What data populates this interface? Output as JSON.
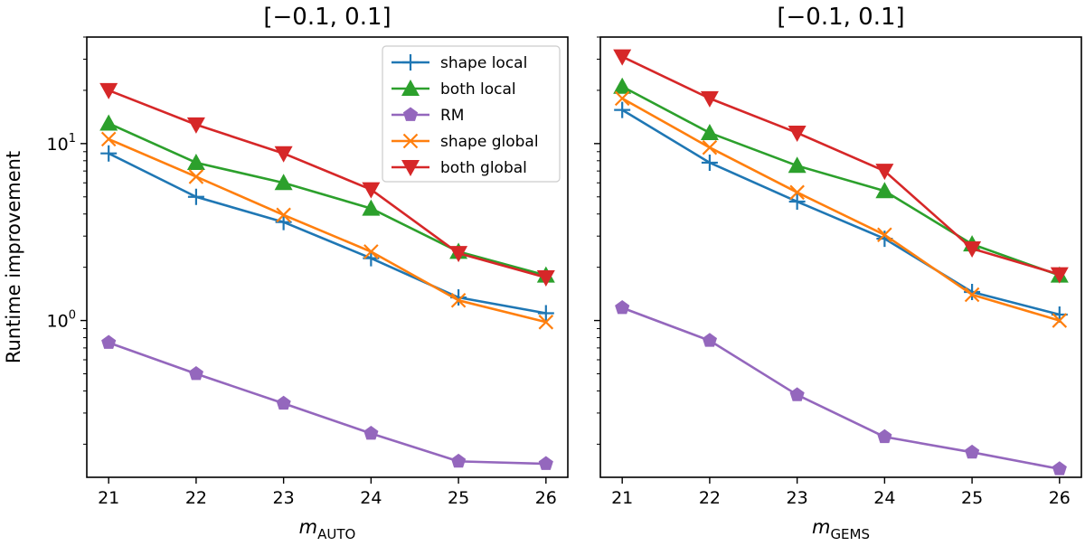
{
  "chart_data": [
    {
      "type": "line",
      "title": "[−0.1, 0.1]",
      "xlabel": "m",
      "xlabel_sub": "AUTO",
      "ylabel": "Runtime improvement",
      "yscale": "log",
      "ylim": [
        0.13,
        40
      ],
      "xlim": [
        20.75,
        26.25
      ],
      "x": [
        21,
        22,
        23,
        24,
        25,
        26
      ],
      "x_tick_labels": [
        "21",
        "22",
        "23",
        "24",
        "25",
        "26"
      ],
      "y_tick_labels": [
        {
          "base": "10",
          "exp": "0",
          "value": 1
        },
        {
          "base": "10",
          "exp": "1",
          "value": 10
        }
      ],
      "grid": false,
      "legend_position": "upper-right",
      "series": [
        {
          "name": "shape local",
          "color": "#1f77b4",
          "marker": "plus",
          "values": [
            8.8,
            5.0,
            3.6,
            2.25,
            1.35,
            1.1
          ]
        },
        {
          "name": "both local",
          "color": "#2ca02c",
          "marker": "triangle-up",
          "values": [
            13.0,
            7.8,
            6.0,
            4.3,
            2.45,
            1.8
          ]
        },
        {
          "name": "RM",
          "color": "#9467bd",
          "marker": "pentagon",
          "values": [
            0.75,
            0.5,
            0.34,
            0.23,
            0.16,
            0.155
          ]
        },
        {
          "name": "shape global",
          "color": "#ff7f0e",
          "marker": "x",
          "values": [
            10.6,
            6.5,
            3.95,
            2.45,
            1.3,
            0.98
          ]
        },
        {
          "name": "both global",
          "color": "#d62728",
          "marker": "triangle-down",
          "values": [
            20.0,
            12.8,
            8.8,
            5.5,
            2.4,
            1.75
          ]
        }
      ]
    },
    {
      "type": "line",
      "title": "[−0.1, 0.1]",
      "xlabel": "m",
      "xlabel_sub": "GEMS",
      "ylabel": "",
      "yscale": "log",
      "ylim": [
        0.13,
        40
      ],
      "xlim": [
        20.75,
        26.25
      ],
      "x": [
        21,
        22,
        23,
        24,
        25,
        26
      ],
      "x_tick_labels": [
        "21",
        "22",
        "23",
        "24",
        "25",
        "26"
      ],
      "y_tick_labels": [],
      "grid": false,
      "series": [
        {
          "name": "shape local",
          "color": "#1f77b4",
          "marker": "plus",
          "values": [
            15.5,
            7.8,
            4.7,
            2.9,
            1.45,
            1.08
          ]
        },
        {
          "name": "both local",
          "color": "#2ca02c",
          "marker": "triangle-up",
          "values": [
            21.0,
            11.5,
            7.5,
            5.4,
            2.7,
            1.8
          ]
        },
        {
          "name": "RM",
          "color": "#9467bd",
          "marker": "pentagon",
          "values": [
            1.18,
            0.77,
            0.38,
            0.22,
            0.18,
            0.145
          ]
        },
        {
          "name": "shape global",
          "color": "#ff7f0e",
          "marker": "x",
          "values": [
            18.0,
            9.5,
            5.3,
            3.05,
            1.4,
            1.0
          ]
        },
        {
          "name": "both global",
          "color": "#d62728",
          "marker": "triangle-down",
          "values": [
            31.0,
            18.0,
            11.5,
            7.0,
            2.55,
            1.82
          ]
        }
      ]
    }
  ]
}
